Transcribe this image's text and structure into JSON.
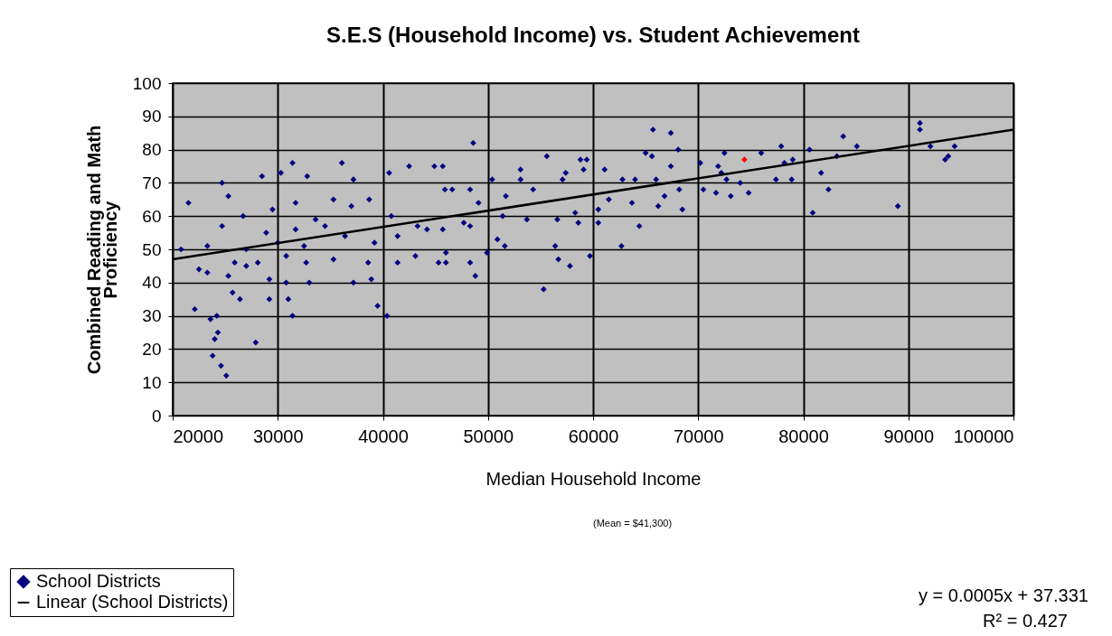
{
  "chart_data": {
    "type": "scatter",
    "title": "S.E.S (Household Income) vs. Student Achievement",
    "xlabel": "Median Household Income",
    "ylabel": "Combined Reading and Math Proficiency",
    "annotations": [
      "(Mean = $41,300)",
      "y = 0.0005x + 37.331",
      "R² = 0.427"
    ],
    "xlim": [
      20000,
      100000
    ],
    "xticks": [
      20000,
      30000,
      40000,
      50000,
      60000,
      70000,
      80000,
      90000,
      100000
    ],
    "ylim": [
      0,
      100
    ],
    "yticks": [
      0,
      10,
      20,
      30,
      40,
      50,
      60,
      70,
      80,
      90,
      100
    ],
    "grid": true,
    "legend": "bottom left",
    "series": [
      {
        "name": "School Districts",
        "color": "#000080",
        "marker": "diamond",
        "x": [
          21500,
          20800,
          24700,
          25300,
          31400,
          36100,
          30300,
          32800,
          28500,
          40600,
          42500,
          44900,
          45900,
          37200,
          22500,
          23300,
          22100,
          24200,
          23600,
          24300,
          24000,
          23800,
          24600,
          25100,
          27900,
          31400,
          39500,
          40400,
          25700,
          26400,
          29200,
          31000,
          37200,
          38900,
          33000,
          28100,
          24700,
          26700,
          29500,
          31700,
          33600,
          35300,
          37000,
          38700,
          40800,
          43300,
          44200,
          45300,
          43100,
          41400,
          38600,
          35300,
          32700,
          30800,
          27000,
          25900,
          23300,
          28900,
          31700,
          34500,
          36400,
          39200,
          41400,
          32500,
          30000,
          27000,
          25300,
          29200,
          30800,
          45700,
          48600,
          55600,
          53100,
          53100,
          65700,
          67400,
          65000,
          68100,
          72500,
          58800,
          59400,
          61100,
          57400,
          65600,
          67400,
          70200,
          71900,
          46600,
          48300,
          50400,
          51700,
          54300,
          57100,
          59100,
          62800,
          64000,
          66000,
          66800,
          68200,
          70500,
          71700,
          49100,
          51400,
          53700,
          56600,
          58600,
          60500,
          61500,
          63700,
          66200,
          68500,
          47700,
          48300,
          45700,
          64400,
          46000,
          46000,
          49900,
          50900,
          51600,
          48300,
          48800,
          55300,
          56400,
          56700,
          57800,
          59700,
          62700,
          60500,
          58300,
          76000,
          77900,
          78200,
          79000,
          80600,
          77400,
          78900,
          72700,
          73100,
          74000,
          74800,
          72200,
          80900,
          81700,
          82400,
          83200,
          83800,
          85100,
          89000,
          91100,
          91100,
          92100,
          93500,
          93800,
          94400
        ],
        "values": [
          64,
          50,
          70,
          66,
          76,
          76,
          73,
          72,
          72,
          73,
          75,
          75,
          68,
          71,
          44,
          43,
          32,
          30,
          29,
          25,
          23,
          18,
          15,
          12,
          22,
          30,
          33,
          30,
          37,
          35,
          35,
          35,
          40,
          41,
          40,
          46,
          57,
          60,
          62,
          64,
          59,
          65,
          63,
          65,
          60,
          57,
          56,
          46,
          48,
          46,
          46,
          47,
          46,
          48,
          50,
          46,
          51,
          55,
          56,
          57,
          54,
          52,
          54,
          51,
          52,
          45,
          42,
          41,
          40,
          75,
          82,
          78,
          74,
          71,
          86,
          85,
          79,
          80,
          79,
          77,
          77,
          74,
          73,
          78,
          75,
          76,
          75,
          68,
          68,
          71,
          66,
          68,
          71,
          74,
          71,
          71,
          71,
          66,
          68,
          68,
          67,
          64,
          60,
          59,
          59,
          58,
          58,
          65,
          64,
          63,
          62,
          58,
          57,
          56,
          57,
          49,
          46,
          49,
          53,
          51,
          46,
          42,
          38,
          51,
          47,
          45,
          48,
          51,
          62,
          61,
          79,
          81,
          76,
          77,
          80,
          71,
          71,
          71,
          66,
          70,
          67,
          73,
          61,
          73,
          68,
          78,
          84,
          81,
          63,
          88,
          86,
          81,
          77,
          78,
          81
        ]
      },
      {
        "color": "#ff0000",
        "marker": "diamond",
        "x": [
          74400
        ],
        "values": [
          77
        ]
      },
      {
        "name": "Linear (School Districts)",
        "type": "line",
        "color": "#000000",
        "x": [
          20000,
          100000
        ],
        "values": [
          47,
          86
        ]
      }
    ]
  }
}
